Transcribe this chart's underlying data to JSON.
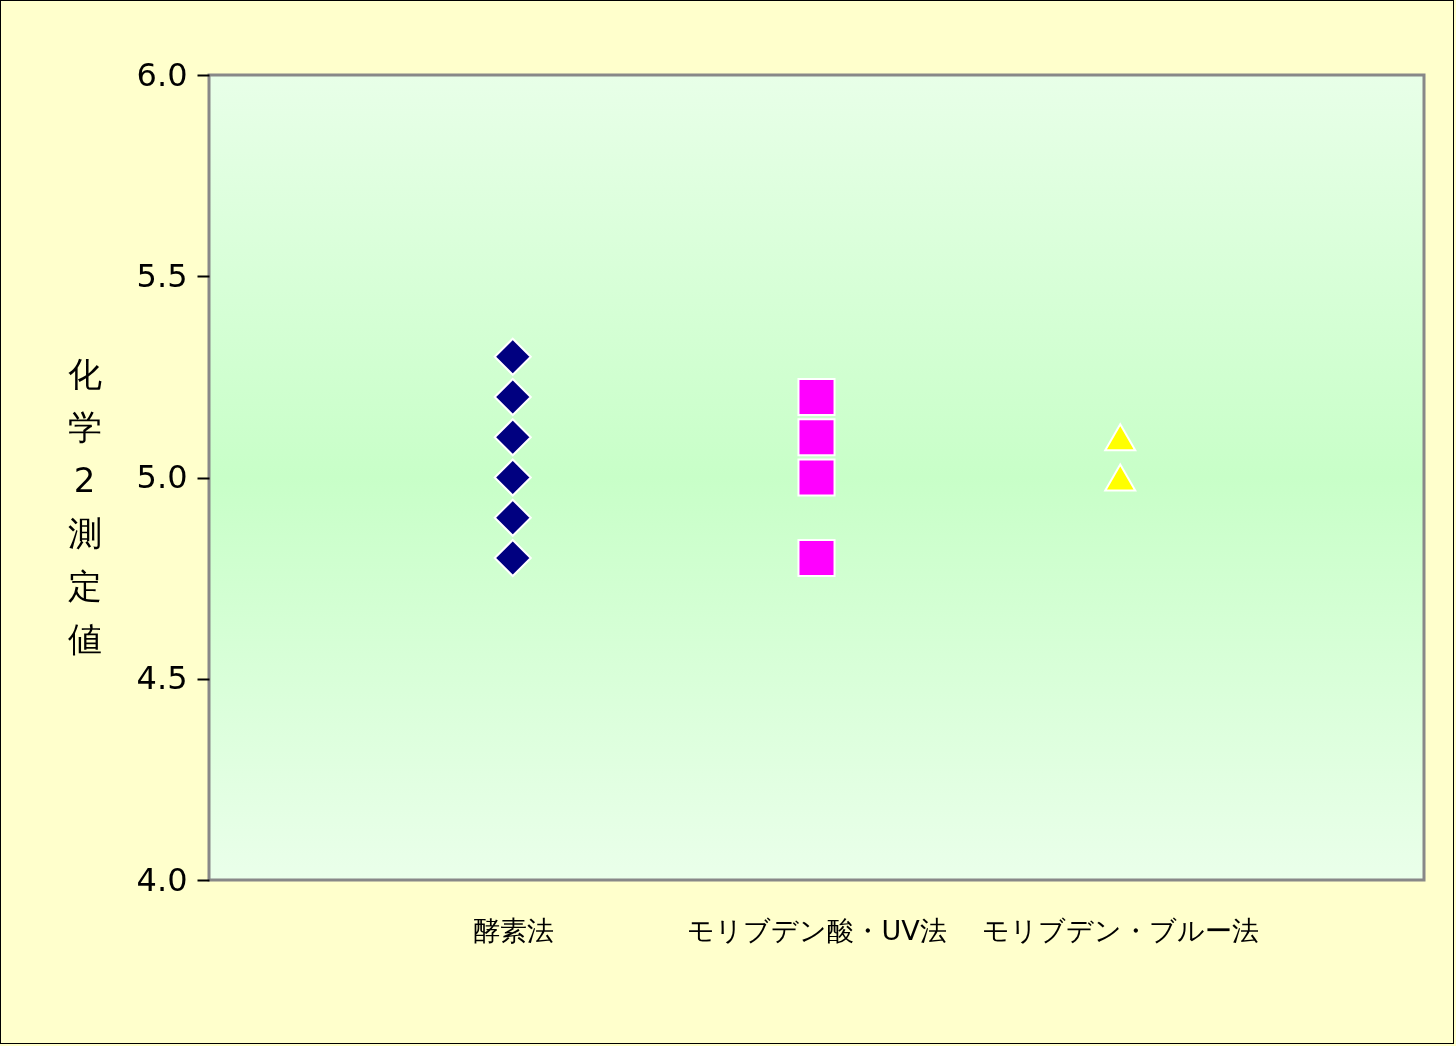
{
  "chart_data": {
    "type": "scatter",
    "ylabel": "化学2測定値",
    "categories": [
      "酵素法",
      "モリブデン酸・UV法",
      "モリブデン・ブルー法"
    ],
    "ylim": [
      4.0,
      6.0
    ],
    "yticks": [
      {
        "value": 4,
        "label": "4.0"
      },
      {
        "value": 4.5,
        "label": "4.5"
      },
      {
        "value": 5,
        "label": "5.0"
      },
      {
        "value": 5.5,
        "label": "5.5"
      },
      {
        "value": 6,
        "label": "6.0"
      }
    ],
    "grid": false,
    "series": [
      {
        "color": "#000080",
        "marker": "diamond",
        "x": [
          "酵素法",
          "酵素法",
          "酵素法",
          "酵素法",
          "酵素法",
          "酵素法"
        ],
        "values": [
          5.3,
          5.2,
          5.1,
          5.0,
          4.9,
          4.8
        ]
      },
      {
        "color": "#ff00ff",
        "marker": "square",
        "x": [
          "モリブデン酸・UV法",
          "モリブデン酸・UV法",
          "モリブデン酸・UV法",
          "モリブデン酸・UV法"
        ],
        "values": [
          5.2,
          5.1,
          5.0,
          4.8
        ]
      },
      {
        "color": "#ffff00",
        "marker": "triangle",
        "x": [
          "モリブデン・ブルー法",
          "モリブデン・ブルー法"
        ],
        "values": [
          5.1,
          5.0
        ]
      }
    ]
  }
}
